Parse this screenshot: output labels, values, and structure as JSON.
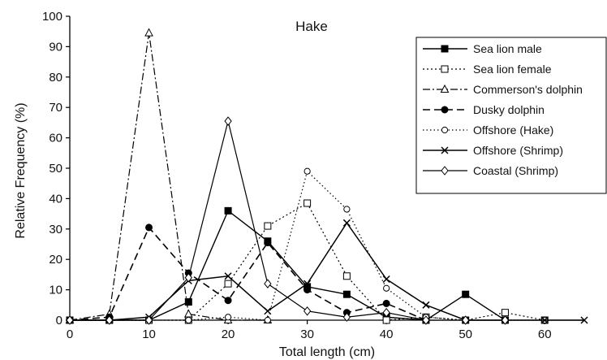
{
  "chart_data": {
    "type": "line",
    "title": "Hake",
    "xlabel": "Total length (cm)",
    "ylabel": "Relative Frequency (%)",
    "xlim": [
      0,
      65
    ],
    "ylim": [
      0,
      100
    ],
    "xticks": [
      0,
      10,
      20,
      30,
      40,
      50,
      60
    ],
    "yticks": [
      0,
      10,
      20,
      30,
      40,
      50,
      60,
      70,
      80,
      90,
      100
    ],
    "grid": false,
    "legend_position": "top-right",
    "series": [
      {
        "name": "Sea lion male",
        "style": {
          "dash": "",
          "marker": "square-filled",
          "width": 1.4
        },
        "x": [
          0,
          5,
          10,
          15,
          20,
          25,
          30,
          35,
          40,
          45,
          50,
          55
        ],
        "y": [
          0,
          0,
          0,
          6,
          36,
          26,
          11,
          8.5,
          1,
          0,
          8.5,
          0
        ]
      },
      {
        "name": "Sea lion female",
        "style": {
          "dash": "2,3",
          "marker": "square-open",
          "width": 1.2
        },
        "x": [
          0,
          5,
          10,
          15,
          20,
          25,
          30,
          35,
          40,
          45,
          50,
          55,
          60
        ],
        "y": [
          0,
          0,
          0,
          0,
          12,
          31,
          38.5,
          14.5,
          0,
          1,
          0,
          2.5,
          0
        ]
      },
      {
        "name": "Commerson's dolphin",
        "style": {
          "dash": "9,3,2,3",
          "marker": "triangle-open",
          "width": 1.2
        },
        "x": [
          0,
          5,
          10,
          15,
          20,
          25
        ],
        "y": [
          0,
          2,
          94.5,
          2,
          0,
          0
        ]
      },
      {
        "name": "Dusky dolphin",
        "style": {
          "dash": "9,5",
          "marker": "circle-filled",
          "width": 1.6
        },
        "x": [
          0,
          5,
          10,
          15,
          20,
          25,
          30,
          35,
          40,
          45
        ],
        "y": [
          0,
          1,
          30.5,
          15.5,
          6.5,
          25.5,
          10,
          2.5,
          5.5,
          0
        ]
      },
      {
        "name": "Offshore (Hake)",
        "style": {
          "dash": "1.5,3",
          "marker": "circle-open",
          "width": 1.2
        },
        "x": [
          0,
          5,
          10,
          15,
          20,
          25,
          30,
          35,
          40,
          45,
          50,
          55,
          60
        ],
        "y": [
          0,
          0,
          0,
          0,
          1,
          0,
          49,
          36.5,
          10.5,
          1,
          0,
          0,
          0
        ]
      },
      {
        "name": "Offshore (Shrimp)",
        "style": {
          "dash": "",
          "marker": "x",
          "width": 1.5
        },
        "x": [
          0,
          5,
          10,
          15,
          20,
          25,
          30,
          35,
          40,
          45,
          50,
          55,
          60,
          65
        ],
        "y": [
          0,
          0,
          1,
          13,
          14.5,
          3,
          12,
          32,
          13.5,
          5,
          0,
          0,
          0,
          0
        ]
      },
      {
        "name": "Coastal (Shrimp)",
        "style": {
          "dash": "",
          "marker": "diamond-open",
          "width": 1.2
        },
        "x": [
          0,
          5,
          10,
          15,
          20,
          25,
          30,
          35,
          40,
          45,
          50,
          55
        ],
        "y": [
          0,
          0,
          0,
          14,
          65.5,
          12,
          3,
          1,
          2.5,
          0,
          0,
          0
        ]
      }
    ]
  }
}
